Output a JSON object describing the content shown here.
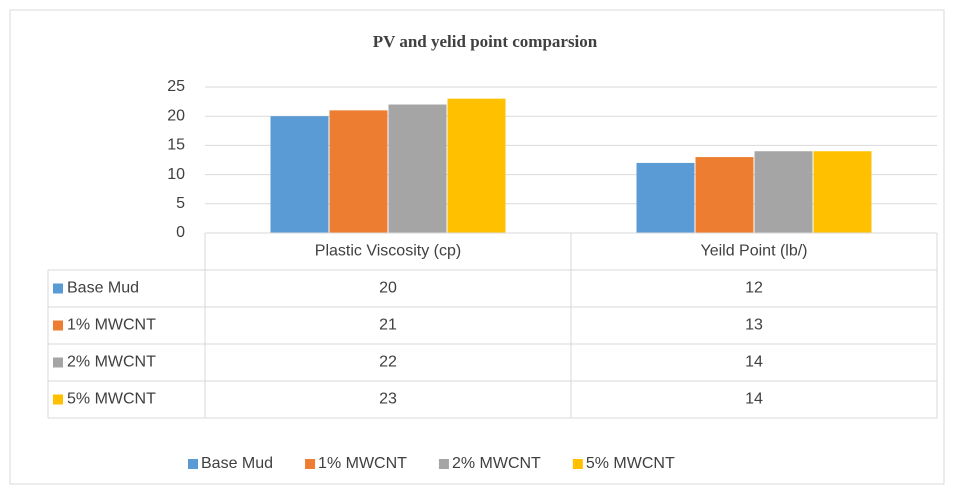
{
  "chart_data": {
    "type": "bar",
    "title": "PV and yelid point comparsion",
    "categories": [
      "Plastic Viscosity (cp)",
      "Yeild Point (lb/)"
    ],
    "series": [
      {
        "name": "Base Mud",
        "color": "#5b9bd5",
        "values": [
          20,
          12
        ]
      },
      {
        "name": "1% MWCNT",
        "color": "#ed7d31",
        "values": [
          21,
          13
        ]
      },
      {
        "name": "2% MWCNT",
        "color": "#a5a5a5",
        "values": [
          22,
          14
        ]
      },
      {
        "name": "5% MWCNT",
        "color": "#ffc000",
        "values": [
          23,
          14
        ]
      }
    ],
    "ylim": [
      0,
      25
    ],
    "yticks": [
      0,
      5,
      10,
      15,
      20,
      25
    ],
    "grid": true,
    "legend": "bottom"
  }
}
